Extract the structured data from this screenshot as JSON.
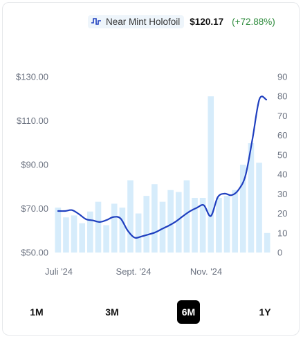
{
  "legend": {
    "icon": "step-line-icon",
    "name": "Near Mint Holofoil",
    "price": "$120.17",
    "change": "(+72.88%)",
    "change_color": "#2e8b3c"
  },
  "chart_data": {
    "type": "bar",
    "x_tick_labels": [
      "Juli '24",
      "Sept. '24",
      "Nov. '24"
    ],
    "y_left_ticks": [
      "$130.00",
      "$110.00",
      "$90.00",
      "$70.00",
      "$50.00"
    ],
    "y_left_range": [
      50,
      130
    ],
    "y_right_ticks": [
      "90",
      "80",
      "70",
      "60",
      "50",
      "40",
      "30",
      "20",
      "10",
      "0"
    ],
    "y_right_range": [
      0,
      90
    ],
    "grid": false,
    "bar_color": "#d6ecfb",
    "line_color": "#1f3fbf",
    "series": [
      {
        "axis": "right",
        "kind": "bar",
        "values": [
          23,
          18,
          19,
          15,
          21,
          26,
          14,
          25,
          23,
          37,
          20,
          29,
          35,
          26,
          32,
          31,
          37,
          28,
          28,
          80,
          28,
          29,
          32,
          45,
          56,
          46,
          10
        ]
      },
      {
        "axis": "left",
        "kind": "line",
        "values": [
          68.9,
          68.9,
          69.3,
          67.5,
          65.2,
          64.6,
          63.9,
          64.8,
          66.2,
          65.5,
          60.1,
          56.8,
          57.3,
          58.2,
          59.2,
          60.8,
          62.3,
          64.2,
          66.6,
          68.8,
          70.4,
          71.5,
          66.6,
          75.2,
          76.8,
          76.1,
          78.6,
          85.1,
          101.6,
          119.8,
          119.6
        ]
      }
    ]
  },
  "ranges": {
    "options": [
      "1M",
      "3M",
      "6M",
      "1Y"
    ],
    "active": "6M"
  }
}
